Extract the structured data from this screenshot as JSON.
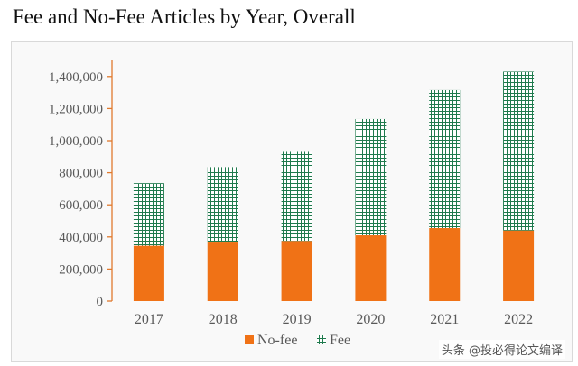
{
  "chart_data": {
    "type": "bar",
    "stacked": true,
    "title": "Fee and No-Fee Articles by Year, Overall",
    "xlabel": "",
    "ylabel": "",
    "categories": [
      "2017",
      "2018",
      "2019",
      "2020",
      "2021",
      "2022"
    ],
    "series": [
      {
        "name": "No-fee",
        "color": "#f07216",
        "pattern": "solid",
        "values": [
          345000,
          365000,
          375000,
          410000,
          455000,
          440000
        ]
      },
      {
        "name": "Fee",
        "color": "#1f7a4d",
        "pattern": "grid-hatch",
        "values": [
          390000,
          470000,
          555000,
          725000,
          860000,
          990000
        ]
      }
    ],
    "ylim": [
      0,
      1500000
    ],
    "yticks": [
      0,
      200000,
      400000,
      600000,
      800000,
      1000000,
      1200000,
      1400000
    ],
    "ytick_labels": [
      "0",
      "200,000",
      "400,000",
      "600,000",
      "800,000",
      "1,000,000",
      "1,200,000",
      "1,400,000"
    ],
    "grid": false,
    "legend": "bottom",
    "axis_color": "#e07a2e"
  },
  "watermark": "头条 @投必得论文编译"
}
